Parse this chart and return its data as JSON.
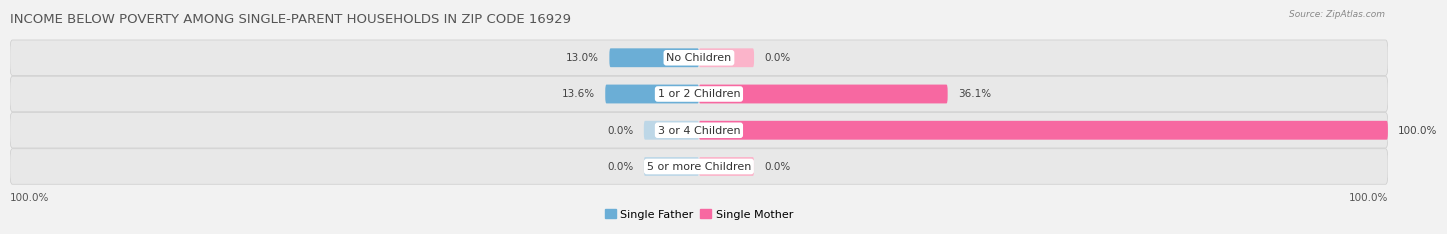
{
  "title": "INCOME BELOW POVERTY AMONG SINGLE-PARENT HOUSEHOLDS IN ZIP CODE 16929",
  "source": "Source: ZipAtlas.com",
  "categories": [
    "No Children",
    "1 or 2 Children",
    "3 or 4 Children",
    "5 or more Children"
  ],
  "single_father": [
    13.0,
    13.6,
    0.0,
    0.0
  ],
  "single_mother": [
    0.0,
    36.1,
    100.0,
    0.0
  ],
  "father_color": "#6baed6",
  "mother_color": "#f768a1",
  "father_color_light": "#bdd7e7",
  "mother_color_light": "#fbb4ca",
  "bg_color": "#f2f2f2",
  "row_bg_color": "#e8e8e8",
  "title_fontsize": 9.5,
  "label_fontsize": 8,
  "value_fontsize": 7.5,
  "source_fontsize": 6.5,
  "bar_height": 0.52,
  "xlim": [
    -100,
    100
  ],
  "x_left_label": "100.0%",
  "x_right_label": "100.0%",
  "legend_father": "Single Father",
  "legend_mother": "Single Mother"
}
